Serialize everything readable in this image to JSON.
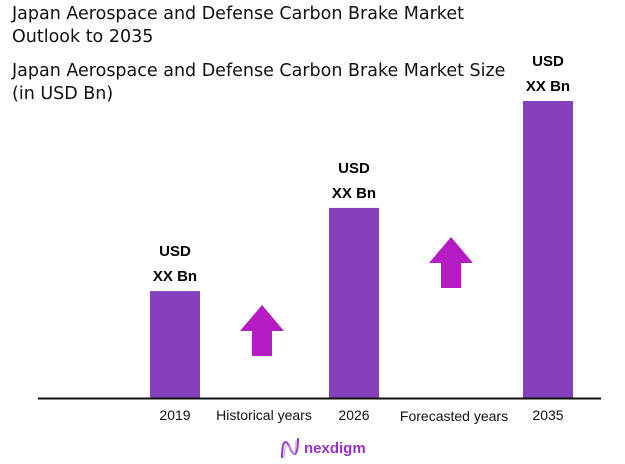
{
  "chart_data": {
    "type": "bar",
    "title": "Japan Aerospace and Defense Carbon Brake Market Outlook to 2035",
    "subtitle": "Japan Aerospace and Defense Carbon Brake Market Size (in USD Bn)",
    "categories": [
      "2019",
      "2026",
      "2035"
    ],
    "values_relative": [
      36,
      64,
      100
    ],
    "data_labels": [
      [
        "USD",
        "XX Bn"
      ],
      [
        "USD",
        "XX Bn"
      ],
      [
        "USD",
        "XX Bn"
      ]
    ],
    "period_labels": [
      "Historical years",
      "Forecasted years"
    ],
    "grid": false,
    "legend": "none",
    "colors": {
      "bar": "#8640bd",
      "arrow": "#b51cc4",
      "axis": "#111111"
    }
  },
  "brand": {
    "logo_text": "nexdigm",
    "color": "#9b2fc9"
  }
}
